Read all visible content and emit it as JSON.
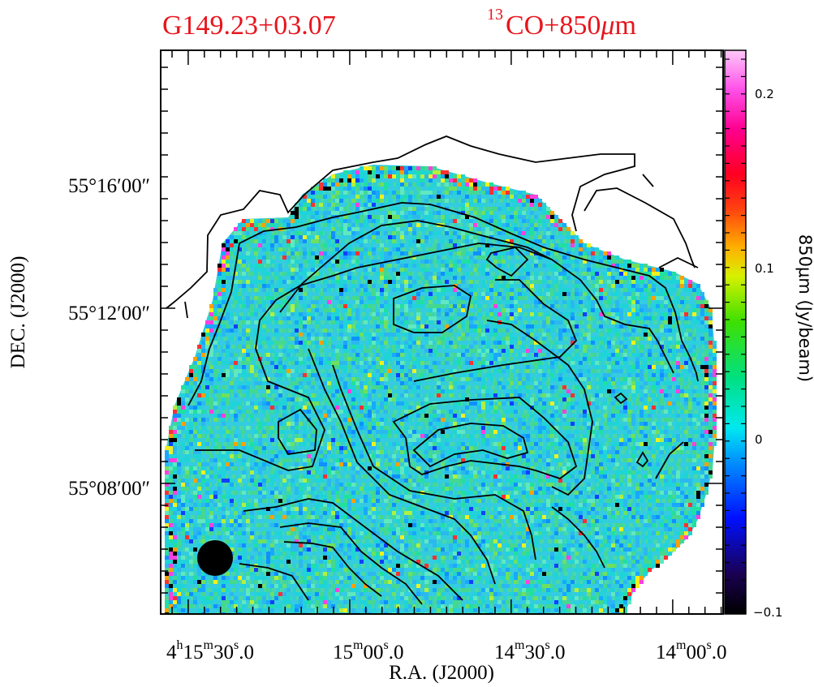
{
  "title": {
    "source": "G149.23+03.07",
    "tracer_sup": "13",
    "tracer": "CO+850",
    "tracer_mu": "μ",
    "tracer_unit": "m"
  },
  "chart_data": {
    "type": "heatmap",
    "overlay": "contour",
    "xlabel": "R.A.  (J2000)",
    "ylabel": "DEC.  (J2000)",
    "x_ticks": [
      {
        "h": "4",
        "hs": "h",
        "m": "15",
        "ms": "m",
        "s": "30",
        "ss": "s",
        "f": ".0"
      },
      {
        "h": "",
        "hs": "",
        "m": "15",
        "ms": "m",
        "s": "00",
        "ss": "s",
        "f": ".0"
      },
      {
        "h": "",
        "hs": "",
        "m": "14",
        "ms": "m",
        "s": "30",
        "ss": "s",
        "f": ".0"
      },
      {
        "h": "",
        "hs": "",
        "m": "14",
        "ms": "m",
        "s": "00",
        "ss": "s",
        "f": ".0"
      }
    ],
    "y_ticks": [
      "55°16′00″",
      "55°12′00″",
      "55°08′00″"
    ],
    "colorbar": {
      "label": "850μm  (Jy/beam)",
      "ticks": [
        "0.2",
        "0.1",
        "0",
        "−0.1"
      ],
      "range": [
        -0.1,
        0.22
      ]
    },
    "beam": "filled-circle"
  }
}
